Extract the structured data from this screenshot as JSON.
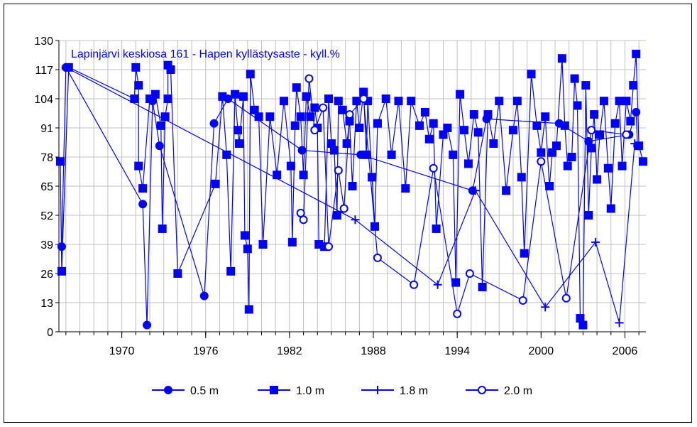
{
  "chart_data": {
    "type": "line",
    "title": "Lapinjärvi keskiosa 161 - Hapen kyllästysaste - kyll.%",
    "xlabel": "",
    "ylabel": "",
    "xlim": [
      1965.5,
      2007.5
    ],
    "ylim": [
      0,
      130
    ],
    "x_ticks": [
      1970,
      1976,
      1982,
      1988,
      1994,
      2000,
      2006
    ],
    "y_ticks": [
      0,
      13,
      26,
      39,
      52,
      65,
      78,
      91,
      104,
      117,
      130
    ],
    "grid": true,
    "legend_position": "bottom",
    "color": "#0000ff",
    "series": [
      {
        "name": "0.5 m",
        "marker": "circle",
        "points": [
          [
            1965.7,
            38
          ],
          [
            1966.0,
            118
          ],
          [
            1971.5,
            57
          ],
          [
            1971.8,
            3
          ],
          [
            1972.2,
            103
          ],
          [
            1972.7,
            83
          ],
          [
            1975.9,
            16
          ],
          [
            1976.6,
            93
          ],
          [
            1977.6,
            104
          ],
          [
            1982.9,
            81
          ],
          [
            1987.1,
            79
          ],
          [
            1995.1,
            63
          ],
          [
            1996.1,
            95
          ],
          [
            2001.3,
            93
          ],
          [
            2003.4,
            85
          ],
          [
            2006.3,
            88
          ],
          [
            2006.8,
            98
          ],
          [
            2006.9,
            83
          ]
        ]
      },
      {
        "name": "1.0 m",
        "marker": "square",
        "points": [
          [
            1965.6,
            76
          ],
          [
            1965.7,
            27
          ],
          [
            1966.2,
            118
          ],
          [
            1970.9,
            104
          ],
          [
            1971.0,
            118
          ],
          [
            1971.2,
            110
          ],
          [
            1971.2,
            74
          ],
          [
            1971.5,
            64
          ],
          [
            1972.0,
            104
          ],
          [
            1972.4,
            106
          ],
          [
            1972.8,
            92
          ],
          [
            1972.9,
            46
          ],
          [
            1973.1,
            96
          ],
          [
            1973.3,
            104
          ],
          [
            1973.3,
            119
          ],
          [
            1973.5,
            117
          ],
          [
            1974.0,
            26
          ],
          [
            1976.7,
            66
          ],
          [
            1977.2,
            105
          ],
          [
            1977.5,
            79
          ],
          [
            1977.8,
            27
          ],
          [
            1978.1,
            106
          ],
          [
            1978.3,
            90
          ],
          [
            1978.4,
            84
          ],
          [
            1978.7,
            105
          ],
          [
            1978.8,
            43
          ],
          [
            1979.0,
            37
          ],
          [
            1979.1,
            10
          ],
          [
            1979.2,
            115
          ],
          [
            1979.5,
            99
          ],
          [
            1979.8,
            96
          ],
          [
            1980.1,
            39
          ],
          [
            1980.6,
            96
          ],
          [
            1981.1,
            70
          ],
          [
            1981.6,
            103
          ],
          [
            1982.1,
            74
          ],
          [
            1982.2,
            40
          ],
          [
            1982.4,
            92
          ],
          [
            1982.5,
            109
          ],
          [
            1982.8,
            96
          ],
          [
            1983.0,
            70
          ],
          [
            1983.2,
            105
          ],
          [
            1983.5,
            96
          ],
          [
            1983.8,
            100
          ],
          [
            1984.0,
            91
          ],
          [
            1984.1,
            39
          ],
          [
            1984.5,
            38
          ],
          [
            1984.8,
            104
          ],
          [
            1985.0,
            84
          ],
          [
            1985.2,
            81
          ],
          [
            1985.4,
            52
          ],
          [
            1985.5,
            103
          ],
          [
            1985.8,
            99
          ],
          [
            1986.1,
            84
          ],
          [
            1986.3,
            94
          ],
          [
            1986.5,
            65
          ],
          [
            1986.8,
            103
          ],
          [
            1987.0,
            91
          ],
          [
            1987.3,
            107
          ],
          [
            1987.5,
            79
          ],
          [
            1987.6,
            103
          ],
          [
            1987.9,
            69
          ],
          [
            1988.1,
            47
          ],
          [
            1988.3,
            93
          ],
          [
            1988.9,
            104
          ],
          [
            1989.3,
            79
          ],
          [
            1989.8,
            103
          ],
          [
            1990.3,
            64
          ],
          [
            1990.7,
            103
          ],
          [
            1991.3,
            92
          ],
          [
            1991.7,
            98
          ],
          [
            1992.0,
            86
          ],
          [
            1992.3,
            93
          ],
          [
            1992.5,
            46
          ],
          [
            1993.0,
            88
          ],
          [
            1993.3,
            91
          ],
          [
            1993.7,
            79
          ],
          [
            1993.9,
            22
          ],
          [
            1994.2,
            106
          ],
          [
            1994.5,
            90
          ],
          [
            1994.8,
            75
          ],
          [
            1995.2,
            97
          ],
          [
            1995.5,
            89
          ],
          [
            1995.8,
            20
          ],
          [
            1996.2,
            97
          ],
          [
            1996.6,
            84
          ],
          [
            1997.0,
            103
          ],
          [
            1997.5,
            63
          ],
          [
            1998.0,
            90
          ],
          [
            1998.3,
            103
          ],
          [
            1998.6,
            69
          ],
          [
            1998.8,
            35
          ],
          [
            1999.3,
            115
          ],
          [
            1999.7,
            92
          ],
          [
            2000.0,
            80
          ],
          [
            2000.3,
            96
          ],
          [
            2000.6,
            65
          ],
          [
            2000.8,
            80
          ],
          [
            2001.1,
            83
          ],
          [
            2001.5,
            122
          ],
          [
            2001.7,
            92
          ],
          [
            2001.9,
            74
          ],
          [
            2002.2,
            78
          ],
          [
            2002.4,
            113
          ],
          [
            2002.6,
            101
          ],
          [
            2002.8,
            6
          ],
          [
            2003.0,
            3
          ],
          [
            2003.2,
            110
          ],
          [
            2003.4,
            52
          ],
          [
            2003.6,
            82
          ],
          [
            2003.8,
            97
          ],
          [
            2004.0,
            68
          ],
          [
            2004.2,
            88
          ],
          [
            2004.5,
            103
          ],
          [
            2004.8,
            73
          ],
          [
            2005.0,
            55
          ],
          [
            2005.3,
            93
          ],
          [
            2005.6,
            103
          ],
          [
            2005.8,
            74
          ],
          [
            2006.1,
            103
          ],
          [
            2006.4,
            94
          ],
          [
            2006.6,
            110
          ],
          [
            2006.8,
            124
          ],
          [
            2007.0,
            83
          ],
          [
            2007.3,
            76
          ]
        ]
      },
      {
        "name": "1.8 m",
        "marker": "plus",
        "points": [
          [
            1966.0,
            118
          ],
          [
            1986.7,
            50
          ],
          [
            1992.6,
            21
          ],
          [
            1995.3,
            63
          ],
          [
            2000.3,
            11
          ],
          [
            2003.9,
            40
          ],
          [
            2005.6,
            4
          ],
          [
            2006.7,
            84
          ]
        ]
      },
      {
        "name": "2.0 m",
        "marker": "ring",
        "points": [
          [
            1982.8,
            53
          ],
          [
            1983.0,
            50
          ],
          [
            1983.4,
            113
          ],
          [
            1983.8,
            90
          ],
          [
            1984.4,
            100
          ],
          [
            1984.8,
            38
          ],
          [
            1985.5,
            72
          ],
          [
            1985.9,
            55
          ],
          [
            1986.3,
            97
          ],
          [
            1987.3,
            104
          ],
          [
            1988.3,
            33
          ],
          [
            1990.9,
            21
          ],
          [
            1992.3,
            73
          ],
          [
            1994.0,
            8
          ],
          [
            1994.9,
            26
          ],
          [
            1998.7,
            14
          ],
          [
            2000.0,
            76
          ],
          [
            2001.8,
            15
          ],
          [
            2003.6,
            90
          ],
          [
            2006.1,
            88
          ]
        ]
      }
    ]
  }
}
